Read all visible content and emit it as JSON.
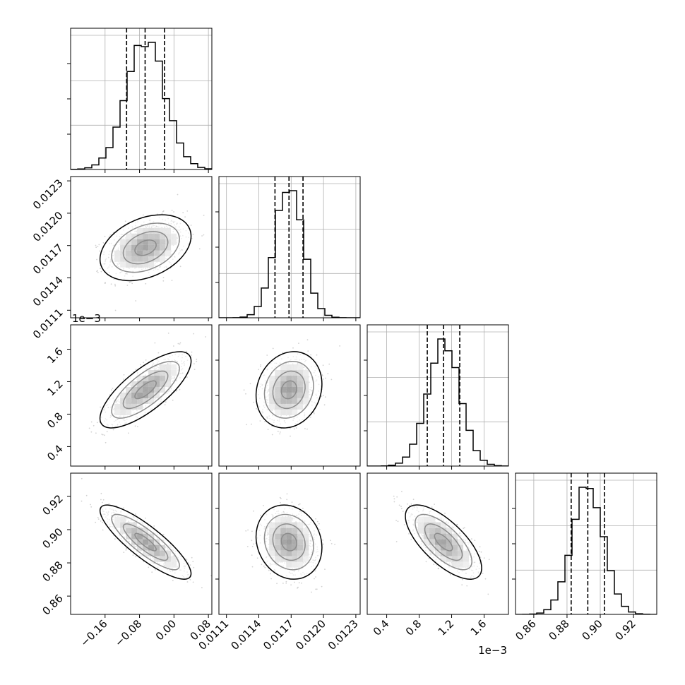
{
  "chart_data": {
    "type": "scatter",
    "kind": "corner",
    "grid": true,
    "colors": {
      "line": "#000000",
      "grid": "#b0b0b0",
      "points": "#7f7f7f"
    },
    "parameters": [
      {
        "ticks": [
          -0.16,
          -0.08,
          0.0,
          0.08
        ],
        "tick_labels": [
          "−0.16",
          "−0.08",
          "0.00",
          "0.08"
        ],
        "range": [
          -0.24,
          0.088
        ],
        "quantiles": [
          -0.11,
          -0.067,
          -0.022
        ],
        "mean": -0.066,
        "sd": 0.045
      },
      {
        "ticks": [
          0.0111,
          0.0114,
          0.0117,
          0.012,
          0.0123
        ],
        "tick_labels": [
          "0.0111",
          "0.0114",
          "0.0117",
          "0.0120",
          "0.0123"
        ],
        "range": [
          0.01103,
          0.01234
        ],
        "quantiles": [
          0.01155,
          0.01168,
          0.01181
        ],
        "mean": 0.01168,
        "sd": 0.00013
      },
      {
        "ticks": [
          0.4,
          0.8,
          1.2,
          1.6
        ],
        "tick_labels": [
          "0.4",
          "0.8",
          "1.2",
          "1.6"
        ],
        "range": [
          0.16,
          1.9
        ],
        "quantiles": [
          0.9,
          1.1,
          1.3
        ],
        "mean": 1.1,
        "sd": 0.2,
        "offset_label": "1e−3"
      },
      {
        "ticks": [
          0.86,
          0.88,
          0.9,
          0.92
        ],
        "tick_labels": [
          "0.86",
          "0.88",
          "0.90",
          "0.92"
        ],
        "range": [
          0.849,
          0.934
        ],
        "quantiles": [
          0.8825,
          0.8925,
          0.9025
        ],
        "mean": 0.8925,
        "sd": 0.0095
      }
    ],
    "correlations": [
      [
        1,
        0.35,
        0.75,
        -0.85
      ],
      [
        0.35,
        1,
        0.15,
        -0.15
      ],
      [
        0.75,
        0.15,
        1,
        -0.7
      ],
      [
        -0.85,
        -0.15,
        -0.7,
        1
      ]
    ]
  }
}
